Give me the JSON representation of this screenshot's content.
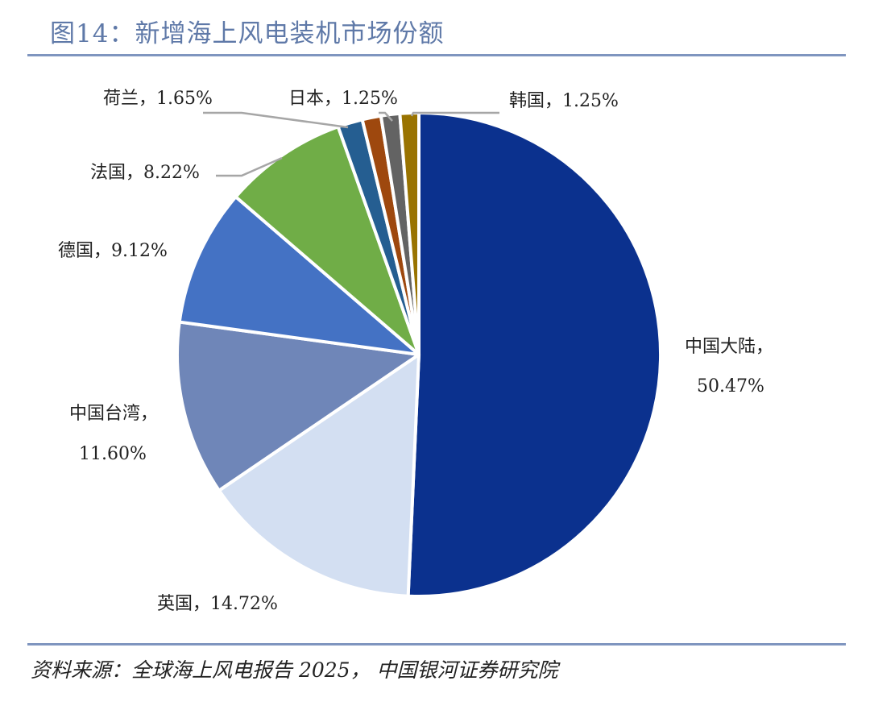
{
  "header": {
    "title": "图14：新增海上风电装机市场份额"
  },
  "footer": {
    "source": "资料来源：全球海上风电报告 2025， 中国银河证券研究院"
  },
  "chart_data": {
    "type": "pie",
    "title": "图14：新增海上风电装机市场份额",
    "unit": "%",
    "legend": "none",
    "slices": [
      {
        "name": "中国大陆",
        "value": 50.47,
        "value_label": "50.47%",
        "color": "#0b318e"
      },
      {
        "name": "英国",
        "value": 14.72,
        "value_label": "14.72%",
        "color": "#d3dff2"
      },
      {
        "name": "中国台湾",
        "value": 11.6,
        "value_label": "11.60%",
        "color": "#6f86b8"
      },
      {
        "name": "德国",
        "value": 9.12,
        "value_label": "9.12%",
        "color": "#4472c4"
      },
      {
        "name": "法国",
        "value": 8.22,
        "value_label": "8.22%",
        "color": "#70ad47"
      },
      {
        "name": "荷兰",
        "value": 1.65,
        "value_label": "1.65%",
        "color": "#255e91"
      },
      {
        "name": "日本",
        "value": 1.25,
        "value_label": "1.25%",
        "color": "#9e480e"
      },
      {
        "name": "",
        "value": 1.25,
        "value_label": "",
        "color": "#636363"
      },
      {
        "name": "韩国",
        "value": 1.25,
        "value_label": "1.25%",
        "color": "#997300"
      }
    ]
  }
}
